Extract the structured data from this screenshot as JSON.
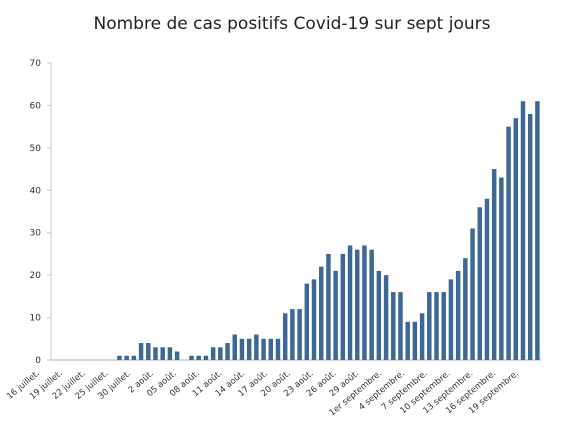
{
  "chart_data": {
    "type": "bar",
    "title": "Nombre de cas positifs Covid-19 sur sept jours",
    "xlabel": "",
    "ylabel": "",
    "ylim": [
      0,
      70
    ],
    "yticks": [
      0,
      10,
      20,
      30,
      40,
      50,
      60,
      70
    ],
    "grid": false,
    "bar_color": "#3d6794",
    "x_tick_labels": [
      "16 juillet.",
      "19 juillet.",
      "22 juillet.",
      "25 juillet.",
      "30 juillet.",
      "2 août.",
      "05 août.",
      "08 août.",
      "11 août.",
      "14 août.",
      "17 août.",
      "20 août.",
      "23 août.",
      "26 août.",
      "29 août.",
      "1er septembre.",
      "4 septembre.",
      "7 septembre.",
      "10 septembre.",
      "13 septembre.",
      "16 septembre.",
      "19 septembre."
    ],
    "values": [
      0,
      0,
      0,
      0,
      0,
      0,
      0,
      0,
      0,
      1,
      1,
      1,
      4,
      4,
      3,
      3,
      3,
      2,
      0,
      1,
      1,
      1,
      3,
      3,
      4,
      6,
      5,
      5,
      6,
      5,
      5,
      5,
      11,
      12,
      12,
      18,
      19,
      22,
      25,
      21,
      25,
      27,
      26,
      27,
      26,
      21,
      20,
      16,
      16,
      9,
      9,
      11,
      16,
      16,
      16,
      19,
      21,
      24,
      31,
      36,
      38,
      45,
      43,
      55,
      57,
      61,
      58,
      61
    ]
  }
}
